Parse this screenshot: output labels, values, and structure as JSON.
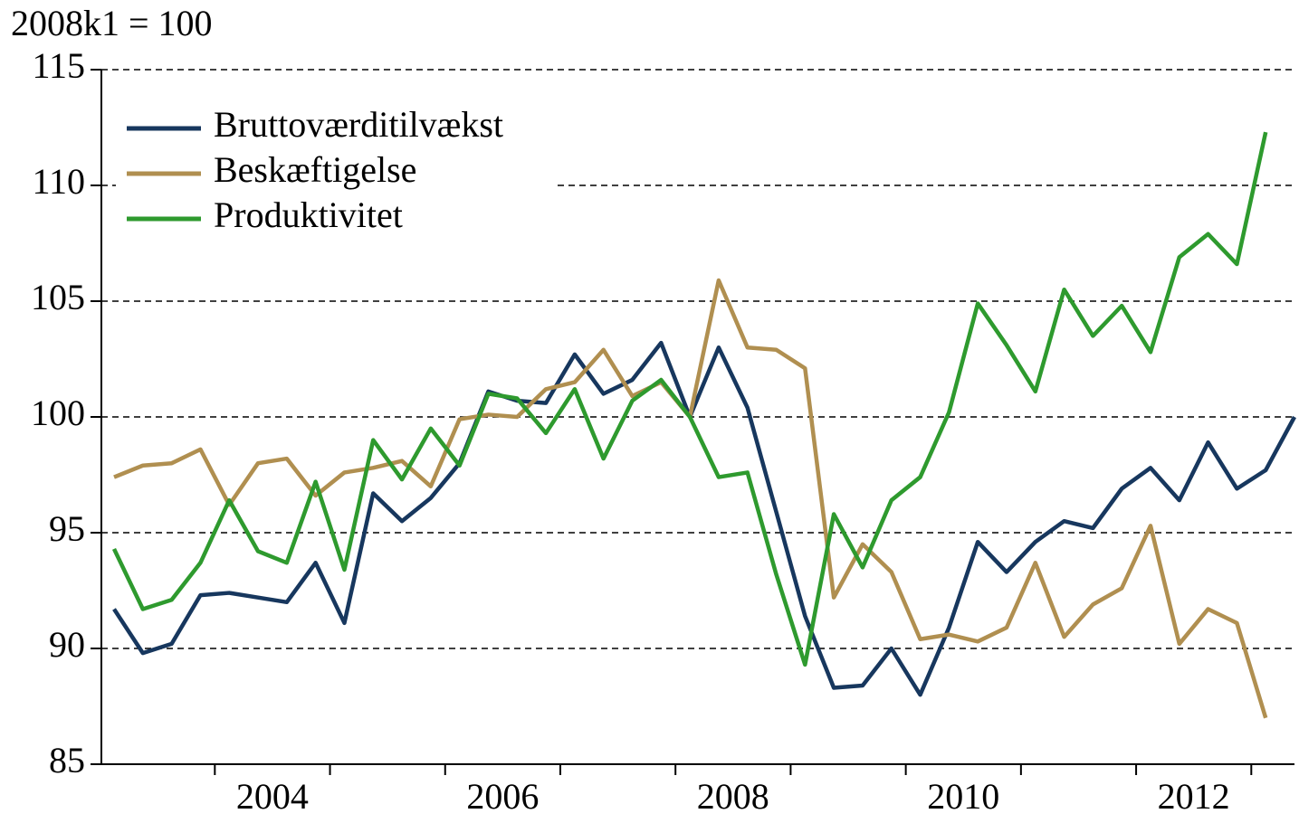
{
  "chart_data": {
    "type": "line",
    "y_label": "2008k1 = 100",
    "categories": [
      null,
      null,
      null,
      null,
      null,
      "2004",
      null,
      null,
      null,
      null,
      null,
      null,
      null,
      "2006",
      null,
      null,
      null,
      null,
      null,
      null,
      null,
      "2008",
      null,
      null,
      null,
      null,
      null,
      null,
      null,
      "2010",
      null,
      null,
      null,
      null,
      null,
      null,
      null,
      "2012",
      null,
      null,
      null,
      null
    ],
    "series": [
      {
        "name": "Bruttoværditilvækst",
        "color": "#17375e",
        "values": [
          91.7,
          89.8,
          90.2,
          92.3,
          92.4,
          92.2,
          92.0,
          93.7,
          91.1,
          96.7,
          95.5,
          96.5,
          98.0,
          101.1,
          100.7,
          100.6,
          102.7,
          101.0,
          101.6,
          103.2,
          100,
          103.0,
          100.4,
          95.9,
          91.4,
          88.3,
          88.4,
          90.0,
          88.0,
          90.9,
          94.6,
          93.3,
          94.6,
          95.5,
          95.2,
          96.9,
          97.8,
          96.4,
          98.9,
          96.9,
          97.7,
          100
        ]
      },
      {
        "name": "Beskæftigelse",
        "color": "#b08f50",
        "values": [
          97.4,
          97.9,
          98.0,
          98.6,
          96.2,
          98.0,
          98.2,
          96.6,
          97.6,
          97.8,
          98.1,
          97.0,
          99.9,
          100.1,
          100.0,
          101.2,
          101.5,
          102.9,
          100.9,
          101.5,
          100,
          105.9,
          103.0,
          102.9,
          102.1,
          92.2,
          94.5,
          93.3,
          90.4,
          90.6,
          90.3,
          90.9,
          93.7,
          90.5,
          91.9,
          92.6,
          95.3,
          90.2,
          91.7,
          91.1,
          87.0,
          null
        ]
      },
      {
        "name": "Produktivitet",
        "color": "#2e9a2e",
        "values": [
          94.3,
          91.7,
          92.1,
          93.7,
          96.4,
          94.2,
          93.7,
          97.2,
          93.4,
          99.0,
          97.3,
          99.5,
          97.9,
          101.0,
          100.8,
          99.3,
          101.2,
          98.2,
          100.7,
          101.6,
          100,
          97.4,
          97.6,
          93.2,
          89.3,
          95.8,
          93.5,
          96.4,
          97.4,
          100.2,
          104.9,
          103.1,
          101.1,
          105.5,
          103.5,
          104.8,
          102.8,
          106.9,
          107.9,
          106.6,
          112.3,
          null
        ]
      }
    ],
    "ylim": [
      85,
      115
    ],
    "yticks": [
      85,
      90,
      95,
      100,
      105,
      110,
      115
    ],
    "grid": true,
    "legend": "top-left"
  }
}
